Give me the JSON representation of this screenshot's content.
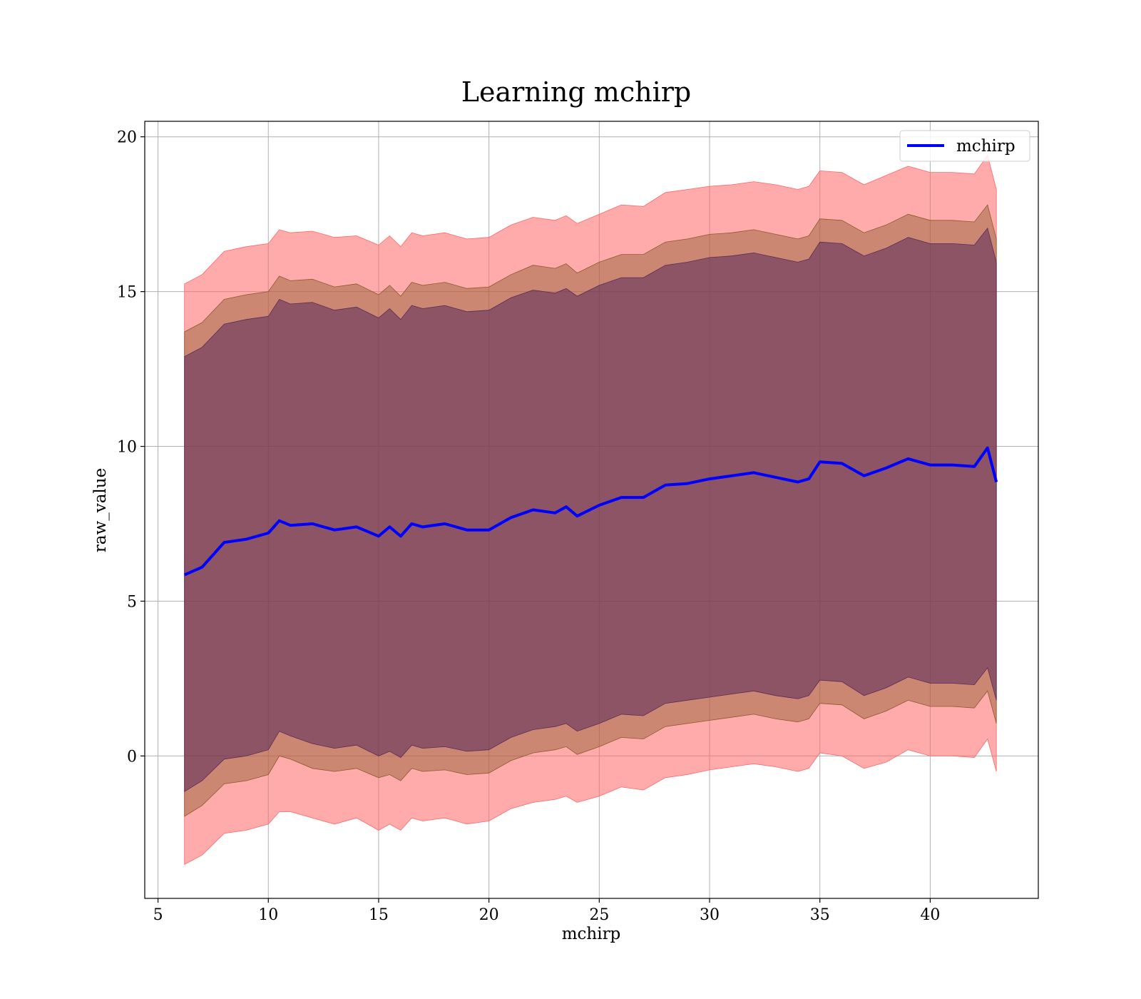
{
  "chart_data": {
    "type": "area",
    "title": "Learning mchirp",
    "xlabel": "mchirp",
    "ylabel": "raw_value",
    "xlim": [
      4.4,
      44.9
    ],
    "ylim": [
      -4.6,
      20.5
    ],
    "xticks": [
      5,
      10,
      15,
      20,
      25,
      30,
      35,
      40
    ],
    "yticks": [
      0,
      5,
      10,
      15,
      20
    ],
    "grid": true,
    "legend": {
      "position": "top-right",
      "entries": [
        "mchirp"
      ]
    },
    "colors": {
      "line": "#0000ff",
      "band_outer": "#ff6666",
      "band_middle": "#8b5a2b",
      "band_inner": "#5a2a5a",
      "grid": "#b0b0b0"
    },
    "x": [
      6.2,
      7.0,
      8.0,
      9.0,
      10.0,
      10.5,
      11.0,
      12.0,
      13.0,
      14.0,
      15.0,
      15.5,
      16.0,
      16.5,
      17.0,
      18.0,
      19.0,
      20.0,
      21.0,
      22.0,
      23.0,
      23.5,
      24.0,
      25.0,
      26.0,
      27.0,
      28.0,
      29.0,
      30.0,
      31.0,
      32.0,
      33.0,
      34.0,
      34.5,
      35.0,
      36.0,
      37.0,
      38.0,
      39.0,
      40.0,
      41.0,
      42.0,
      42.6,
      43.0
    ],
    "series": [
      {
        "name": "mchirp",
        "role": "line",
        "values": [
          5.85,
          6.1,
          6.9,
          7.0,
          7.2,
          7.6,
          7.45,
          7.5,
          7.3,
          7.4,
          7.1,
          7.4,
          7.1,
          7.5,
          7.4,
          7.5,
          7.3,
          7.3,
          7.7,
          7.95,
          7.85,
          8.05,
          7.75,
          8.1,
          8.35,
          8.35,
          8.75,
          8.8,
          8.95,
          9.05,
          9.15,
          9.0,
          8.85,
          8.95,
          9.5,
          9.45,
          9.05,
          9.3,
          9.6,
          9.4,
          9.4,
          9.35,
          9.95,
          8.85
        ]
      },
      {
        "name": "band_outer",
        "role": "band",
        "lower": [
          -3.5,
          -3.2,
          -2.5,
          -2.4,
          -2.2,
          -1.8,
          -1.8,
          -2.0,
          -2.2,
          -2.0,
          -2.4,
          -2.2,
          -2.4,
          -2.0,
          -2.1,
          -2.0,
          -2.2,
          -2.1,
          -1.7,
          -1.5,
          -1.4,
          -1.3,
          -1.5,
          -1.3,
          -1.0,
          -1.1,
          -0.7,
          -0.6,
          -0.45,
          -0.35,
          -0.25,
          -0.35,
          -0.5,
          -0.4,
          0.1,
          0.0,
          -0.4,
          -0.2,
          0.2,
          0.0,
          0.0,
          -0.05,
          0.55,
          -0.5
        ],
        "upper": [
          15.25,
          15.55,
          16.3,
          16.45,
          16.55,
          17.0,
          16.9,
          16.95,
          16.75,
          16.8,
          16.5,
          16.8,
          16.45,
          16.9,
          16.8,
          16.9,
          16.7,
          16.75,
          17.15,
          17.4,
          17.3,
          17.45,
          17.2,
          17.5,
          17.8,
          17.75,
          18.2,
          18.3,
          18.4,
          18.45,
          18.55,
          18.45,
          18.3,
          18.4,
          18.9,
          18.85,
          18.45,
          18.75,
          19.05,
          18.85,
          18.85,
          18.8,
          19.4,
          18.3
        ]
      },
      {
        "name": "band_middle",
        "role": "band",
        "lower": [
          -1.95,
          -1.6,
          -0.9,
          -0.8,
          -0.6,
          0.0,
          -0.1,
          -0.4,
          -0.5,
          -0.4,
          -0.7,
          -0.6,
          -0.8,
          -0.4,
          -0.5,
          -0.45,
          -0.6,
          -0.55,
          -0.15,
          0.1,
          0.2,
          0.3,
          0.05,
          0.3,
          0.6,
          0.55,
          0.95,
          1.05,
          1.15,
          1.25,
          1.35,
          1.2,
          1.1,
          1.2,
          1.7,
          1.65,
          1.2,
          1.45,
          1.8,
          1.6,
          1.6,
          1.55,
          2.1,
          1.05
        ]
      },
      {
        "name": "band_middle_upper",
        "role": "band",
        "upper": [
          13.7,
          14.0,
          14.75,
          14.9,
          15.0,
          15.5,
          15.35,
          15.4,
          15.15,
          15.25,
          14.9,
          15.2,
          14.85,
          15.3,
          15.2,
          15.3,
          15.1,
          15.15,
          15.55,
          15.85,
          15.75,
          15.9,
          15.6,
          15.95,
          16.2,
          16.2,
          16.6,
          16.7,
          16.85,
          16.9,
          17.0,
          16.85,
          16.7,
          16.8,
          17.35,
          17.3,
          16.9,
          17.15,
          17.5,
          17.3,
          17.3,
          17.25,
          17.8,
          16.7
        ]
      },
      {
        "name": "band_inner",
        "role": "band",
        "lower": [
          -1.15,
          -0.8,
          -0.1,
          0.0,
          0.2,
          0.8,
          0.65,
          0.4,
          0.25,
          0.35,
          0.0,
          0.15,
          -0.05,
          0.35,
          0.25,
          0.3,
          0.15,
          0.2,
          0.6,
          0.85,
          0.95,
          1.05,
          0.8,
          1.05,
          1.35,
          1.3,
          1.7,
          1.8,
          1.9,
          2.0,
          2.1,
          1.95,
          1.85,
          1.95,
          2.45,
          2.4,
          1.95,
          2.2,
          2.55,
          2.35,
          2.35,
          2.3,
          2.85,
          1.8
        ],
        "upper": [
          12.9,
          13.2,
          13.95,
          14.1,
          14.2,
          14.75,
          14.6,
          14.65,
          14.4,
          14.5,
          14.15,
          14.45,
          14.1,
          14.55,
          14.45,
          14.55,
          14.35,
          14.4,
          14.8,
          15.05,
          14.95,
          15.1,
          14.85,
          15.2,
          15.45,
          15.45,
          15.85,
          15.95,
          16.1,
          16.15,
          16.25,
          16.1,
          15.95,
          16.05,
          16.6,
          16.55,
          16.15,
          16.4,
          16.75,
          16.55,
          16.55,
          16.5,
          17.05,
          15.95
        ]
      }
    ]
  }
}
